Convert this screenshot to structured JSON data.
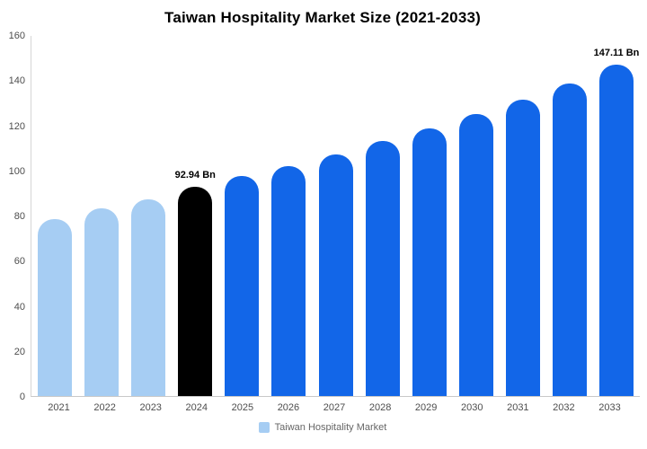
{
  "chart_data": {
    "type": "bar",
    "title": "Taiwan Hospitality Market Size (2021-2033)",
    "categories": [
      "2021",
      "2022",
      "2023",
      "2024",
      "2025",
      "2026",
      "2027",
      "2028",
      "2029",
      "2030",
      "2031",
      "2032",
      "2033"
    ],
    "values": [
      78.5,
      83.2,
      87.5,
      92.94,
      97.8,
      102.3,
      107.5,
      113.2,
      119.0,
      125.2,
      131.7,
      138.8,
      147.11
    ],
    "data_labels": [
      "",
      "",
      "",
      "92.94 Bn",
      "",
      "",
      "",
      "",
      "",
      "",
      "",
      "",
      "147.11 Bn"
    ],
    "bar_colors": [
      "#A6CDF3",
      "#A6CDF3",
      "#A6CDF3",
      "#000000",
      "#1266E8",
      "#1266E8",
      "#1266E8",
      "#1266E8",
      "#1266E8",
      "#1266E8",
      "#1266E8",
      "#1266E8",
      "#1266E8"
    ],
    "ylim": [
      0,
      160
    ],
    "yticks": [
      0,
      20,
      40,
      60,
      80,
      100,
      120,
      140,
      160
    ],
    "grid": false,
    "legend_position": "bottom",
    "legend": [
      {
        "label": "Taiwan Hospitality Market",
        "color": "#A6CDF3"
      }
    ]
  }
}
